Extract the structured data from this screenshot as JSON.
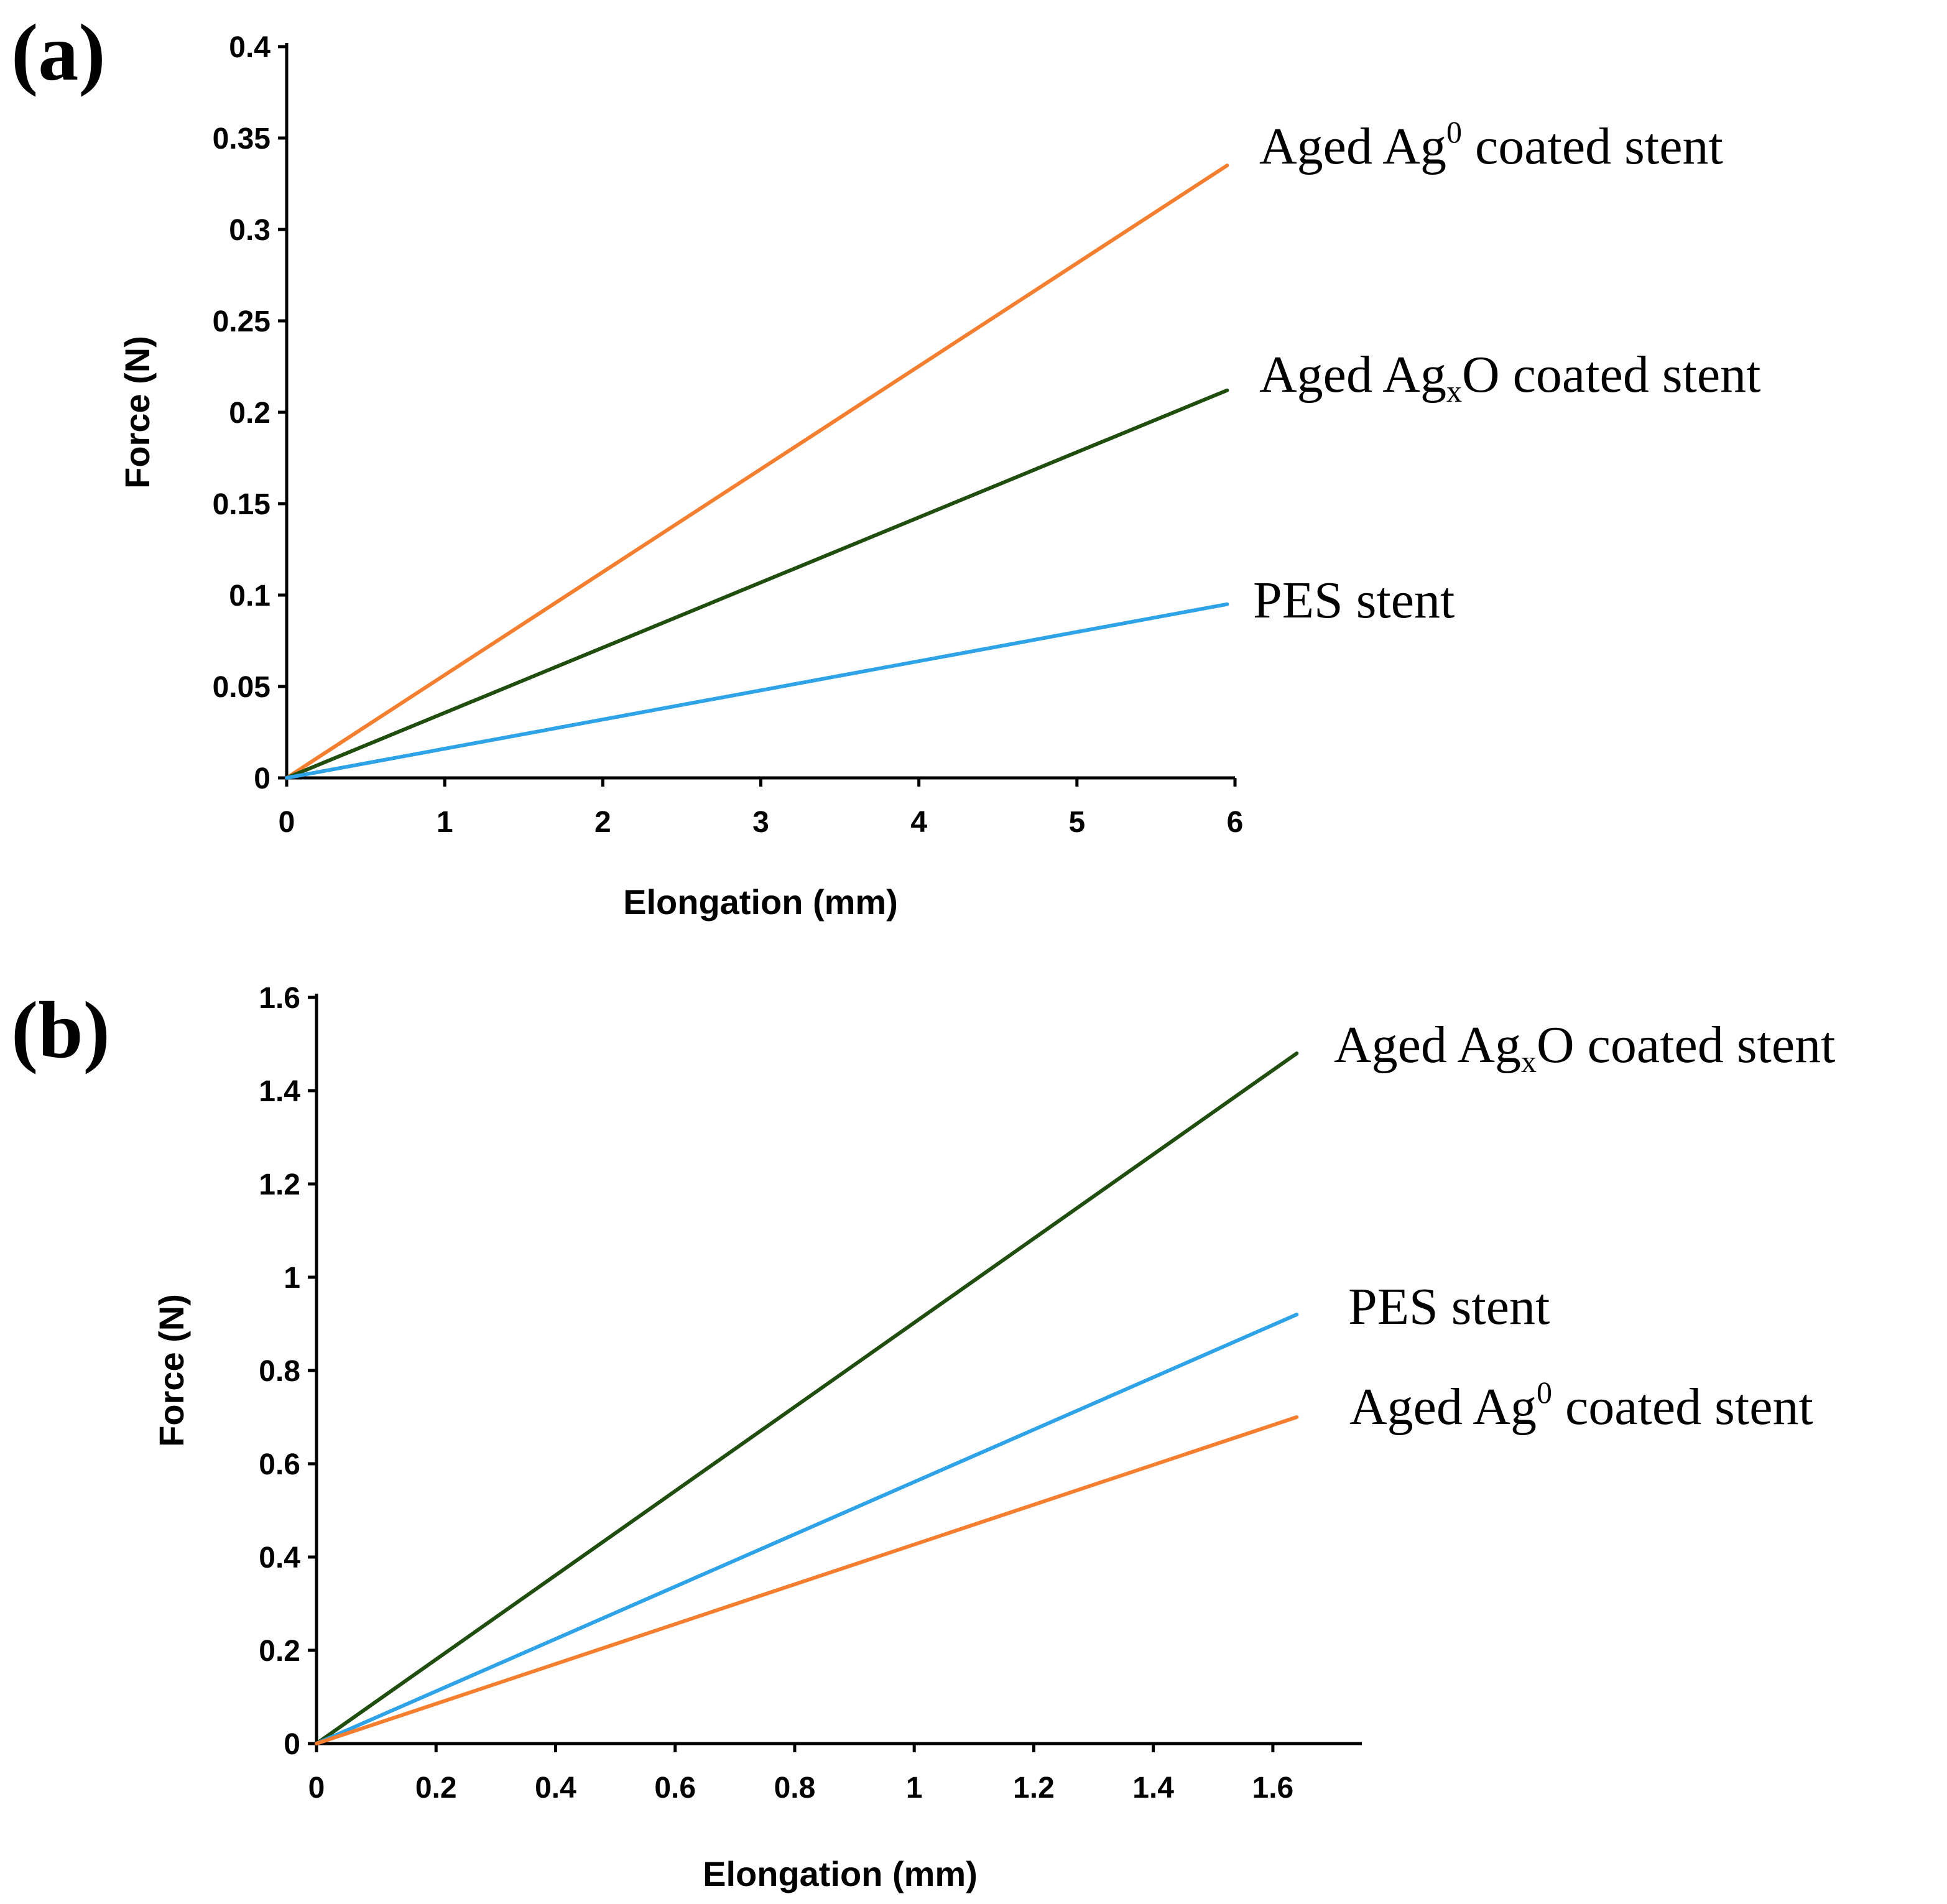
{
  "chart_data": [
    {
      "type": "line",
      "panel_label": "(a)",
      "xlabel": "Elongation (mm)",
      "ylabel": "Force (N)",
      "xlim": [
        0,
        6
      ],
      "ylim": [
        0,
        0.4
      ],
      "x_ticks": [
        "0",
        "1",
        "2",
        "3",
        "4",
        "5",
        "6"
      ],
      "y_ticks": [
        "0",
        "0.05",
        "0.1",
        "0.15",
        "0.2",
        "0.25",
        "0.3",
        "0.35",
        "0.4"
      ],
      "series": [
        {
          "name": "Aged Ag0 coated stent",
          "label": {
            "base": "Aged Ag",
            "script": "0",
            "rest": " coated stent",
            "script_type": "sup"
          },
          "color": "#F57F2F",
          "x": [
            0,
            5.95
          ],
          "y": [
            0,
            0.335
          ]
        },
        {
          "name": "Aged AgxO coated stent",
          "label": {
            "base": "Aged Ag",
            "script": "x",
            "rest": "O coated stent",
            "script_type": "sub"
          },
          "color": "#1F4E0E",
          "x": [
            0,
            5.95
          ],
          "y": [
            0,
            0.212
          ]
        },
        {
          "name": "PES stent",
          "label": {
            "base": "PES stent",
            "script": "",
            "rest": "",
            "script_type": "none"
          },
          "color": "#2FA3E8",
          "x": [
            0,
            5.95
          ],
          "y": [
            0,
            0.095
          ]
        }
      ]
    },
    {
      "type": "line",
      "panel_label": "(b)",
      "xlabel": "Elongation (mm)",
      "ylabel": "Force (N)",
      "xlim": [
        0,
        1.7
      ],
      "ylim": [
        0,
        1.6
      ],
      "x_ticks": [
        "0",
        "0.2",
        "0.4",
        "0.6",
        "0.8",
        "1",
        "1.2",
        "1.4",
        "1.6"
      ],
      "y_ticks": [
        "0",
        "0.2",
        "0.4",
        "0.6",
        "0.8",
        "1",
        "1.2",
        "1.4",
        "1.6"
      ],
      "series": [
        {
          "name": "Aged AgxO coated stent",
          "label": {
            "base": "Aged Ag",
            "script": "x",
            "rest": "O coated stent",
            "script_type": "sub"
          },
          "color": "#1F4E0E",
          "x": [
            0,
            1.64
          ],
          "y": [
            0,
            1.48
          ]
        },
        {
          "name": "PES stent",
          "label": {
            "base": "PES stent",
            "script": "",
            "rest": "",
            "script_type": "none"
          },
          "color": "#2FA3E8",
          "x": [
            0,
            1.64
          ],
          "y": [
            0,
            0.92
          ]
        },
        {
          "name": "Aged Ag0 coated stent",
          "label": {
            "base": "Aged Ag",
            "script": "0",
            "rest": " coated stent",
            "script_type": "sup"
          },
          "color": "#F57F2F",
          "x": [
            0,
            1.64
          ],
          "y": [
            0,
            0.7
          ]
        }
      ]
    }
  ]
}
